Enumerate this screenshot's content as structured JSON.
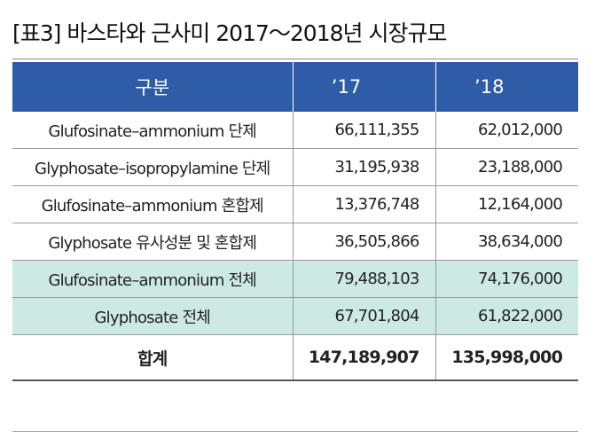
{
  "title": "[표3] 바스타와 근사미 2017～2018년 시장규모",
  "table": {
    "headers": [
      "구분",
      "’17",
      "’18"
    ],
    "rows": [
      {
        "label": "Glufosinate–ammonium 단제",
        "y2017": "66,111,355",
        "y2018": "62,012,000"
      },
      {
        "label": "Glyphosate–isopropylamine 단제",
        "y2017": "31,195,938",
        "y2018": "23,188,000"
      },
      {
        "label": "Glufosinate–ammonium 혼합제",
        "y2017": "13,376,748",
        "y2018": "12,164,000"
      },
      {
        "label": "Glyphosate 유사성분 및 혼합제",
        "y2017": "36,505,866",
        "y2018": "38,634,000"
      },
      {
        "label": "Glufosinate–ammonium 전체",
        "y2017": "79,488,103",
        "y2018": "74,176,000"
      },
      {
        "label": "Glyphosate 전체",
        "y2017": "67,701,804",
        "y2018": "61,822,000"
      },
      {
        "label": "합계",
        "y2017": "147,189,907",
        "y2018": "135,998,000"
      }
    ]
  },
  "colors": {
    "header_bg": "#2e5ca6",
    "highlight_bg": "#cde9e3"
  }
}
